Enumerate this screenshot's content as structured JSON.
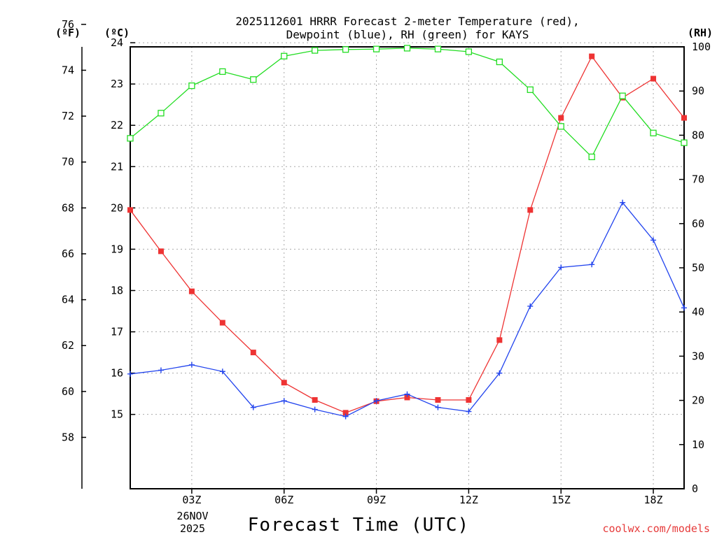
{
  "chart_data": {
    "type": "line",
    "title_lines": [
      "2025112601 HRRR Forecast 2-meter Temperature (red),",
      "Dewpoint (blue), RH (green) for KAYS"
    ],
    "xlabel": "Forecast Time (UTC)",
    "date_label": [
      "26NOV",
      "2025"
    ],
    "credit": "coolwx.com/models",
    "x_hours": [
      1,
      2,
      3,
      4,
      5,
      6,
      7,
      8,
      9,
      10,
      11,
      12,
      13,
      14,
      15,
      16,
      17,
      18,
      19
    ],
    "xlim": [
      1,
      19
    ],
    "x_ticks": [
      {
        "hour": 3,
        "label": "03Z"
      },
      {
        "hour": 6,
        "label": "06Z"
      },
      {
        "hour": 9,
        "label": "09Z"
      },
      {
        "hour": 12,
        "label": "12Z"
      },
      {
        "hour": 15,
        "label": "15Z"
      },
      {
        "hour": 18,
        "label": "18Z"
      }
    ],
    "axes": {
      "fahrenheit": {
        "unit_label": "(ºF)",
        "ticks": [
          58,
          60,
          62,
          64,
          66,
          68,
          70,
          72,
          74,
          76
        ]
      },
      "celsius": {
        "unit_label": "(ºC)",
        "lim": [
          13.2,
          23.9
        ],
        "ticks": [
          15,
          16,
          17,
          18,
          19,
          20,
          21,
          22,
          23,
          24
        ]
      },
      "rh": {
        "unit_label": "(RH)",
        "lim": [
          0,
          100
        ],
        "ticks": [
          0,
          10,
          20,
          30,
          40,
          50,
          60,
          70,
          80,
          90,
          100
        ]
      }
    },
    "series": [
      {
        "name": "Temperature",
        "axis": "celsius",
        "color": "#ee3333",
        "marker": "filled-square",
        "values": [
          19.95,
          18.95,
          17.98,
          17.22,
          16.5,
          15.77,
          15.35,
          15.04,
          15.32,
          15.41,
          15.35,
          15.35,
          16.8,
          19.95,
          22.18,
          23.67,
          22.67,
          23.13,
          22.18
        ]
      },
      {
        "name": "Dewpoint",
        "axis": "celsius",
        "color": "#2244ee",
        "marker": "plus",
        "values": [
          15.98,
          16.07,
          16.2,
          16.04,
          15.17,
          15.33,
          15.12,
          14.95,
          15.33,
          15.49,
          15.17,
          15.07,
          16.0,
          17.62,
          18.56,
          18.63,
          20.13,
          19.22,
          17.58
        ]
      },
      {
        "name": "RH",
        "axis": "rh",
        "color": "#22dd22",
        "marker": "open-square",
        "values": [
          79.3,
          85.0,
          91.2,
          94.4,
          92.6,
          97.9,
          99.2,
          99.4,
          99.5,
          99.7,
          99.5,
          98.9,
          96.6,
          90.3,
          82.0,
          75.1,
          88.9,
          80.5,
          78.3
        ]
      }
    ]
  }
}
